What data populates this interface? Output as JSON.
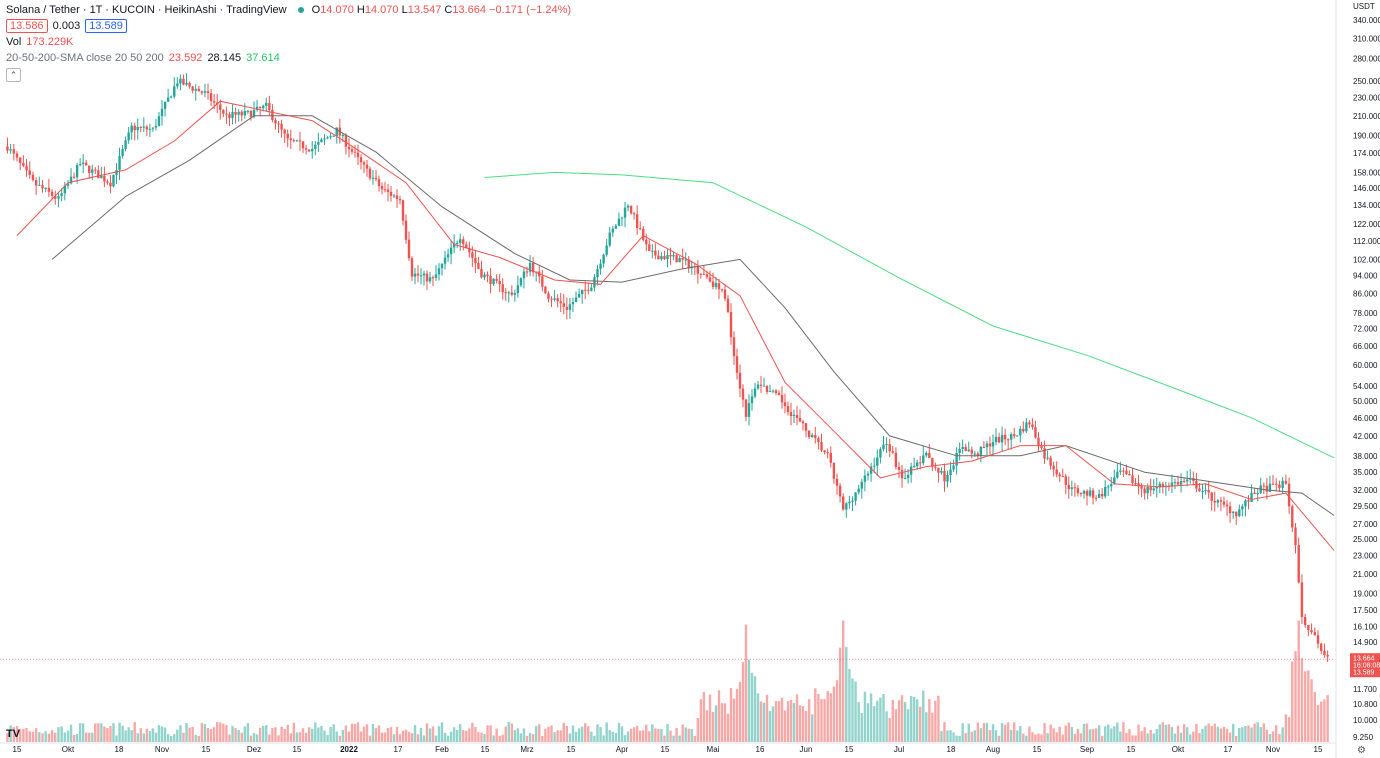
{
  "legend": {
    "title": "Solana / Tether · 1T · KUCOIN · HeikinAshi · TradingView",
    "o_label": "O",
    "o": "14.070",
    "h_label": "H",
    "h": "14.070",
    "l_label": "L",
    "l": "13.547",
    "c_label": "C",
    "c": "13.664",
    "change": "−0.171 (−1.24%)",
    "bid": "13.586",
    "spread": "0.003",
    "ask": "13.589",
    "vol_label": "Vol",
    "vol": "173.229K",
    "sma_label": "20-50-200-SMA close 20 50 200",
    "sma20": "23.592",
    "sma50": "28.145",
    "sma200": "37.614",
    "collapse_icon": "chevron-up-icon"
  },
  "axis": {
    "currency": "USDT",
    "price_labels": [
      "340.000",
      "310.000",
      "280.000",
      "250.000",
      "230.000",
      "210.000",
      "190.000",
      "174.000",
      "158.000",
      "146.000",
      "134.000",
      "122.000",
      "112.000",
      "102.000",
      "94.000",
      "86.000",
      "78.000",
      "72.000",
      "66.000",
      "60.000",
      "54.000",
      "50.000",
      "46.000",
      "42.000",
      "38.000",
      "35.000",
      "32.000",
      "29.500",
      "27.000",
      "25.000",
      "23.000",
      "21.000",
      "19.000",
      "17.500",
      "16.100",
      "14.900",
      "11.700",
      "10.800",
      "10.000",
      "9.250"
    ],
    "price_tags": {
      "last": "13.664",
      "countdown": "16:08:08",
      "ask": "13.589"
    },
    "time_labels": [
      {
        "t": "15",
        "x": 17,
        "bold": false
      },
      {
        "t": "Okt",
        "x": 68,
        "bold": false
      },
      {
        "t": "18",
        "x": 119,
        "bold": false
      },
      {
        "t": "Nov",
        "x": 162,
        "bold": false
      },
      {
        "t": "15",
        "x": 206,
        "bold": false
      },
      {
        "t": "Dez",
        "x": 254,
        "bold": false
      },
      {
        "t": "15",
        "x": 297,
        "bold": false
      },
      {
        "t": "2022",
        "x": 349,
        "bold": true
      },
      {
        "t": "17",
        "x": 398,
        "bold": false
      },
      {
        "t": "Feb",
        "x": 442,
        "bold": false
      },
      {
        "t": "15",
        "x": 485,
        "bold": false
      },
      {
        "t": "Mrz",
        "x": 527,
        "bold": false
      },
      {
        "t": "15",
        "x": 571,
        "bold": false
      },
      {
        "t": "Apr",
        "x": 622,
        "bold": false
      },
      {
        "t": "15",
        "x": 665,
        "bold": false
      },
      {
        "t": "Mai",
        "x": 713,
        "bold": false
      },
      {
        "t": "16",
        "x": 760,
        "bold": false
      },
      {
        "t": "Jun",
        "x": 806,
        "bold": false
      },
      {
        "t": "15",
        "x": 849,
        "bold": false
      },
      {
        "t": "Jul",
        "x": 899,
        "bold": false
      },
      {
        "t": "18",
        "x": 951,
        "bold": false
      },
      {
        "t": "Aug",
        "x": 993,
        "bold": false
      },
      {
        "t": "15",
        "x": 1037,
        "bold": false
      },
      {
        "t": "Sep",
        "x": 1087,
        "bold": false
      },
      {
        "t": "15",
        "x": 1131,
        "bold": false
      },
      {
        "t": "Okt",
        "x": 1178,
        "bold": false
      },
      {
        "t": "17",
        "x": 1228,
        "bold": false
      },
      {
        "t": "Nov",
        "x": 1273,
        "bold": false
      },
      {
        "t": "15",
        "x": 1318,
        "bold": false
      }
    ],
    "settings_icon": "gear-icon",
    "logo": "TV"
  },
  "colors": {
    "up": "#26a69a",
    "down": "#ef5350",
    "vol_up": "#92d3cc",
    "vol_down": "#f7a9a7",
    "sma20": "#ef5350",
    "sma50": "#6b6b6b",
    "sma200": "#4ade80"
  },
  "chart_data": {
    "type": "line",
    "style": "heikin-ashi candlestick",
    "symbol": "Solana / Tether",
    "x_range": [
      "2021-09-15",
      "2022-11-20"
    ],
    "y_range": [
      9.25,
      340
    ],
    "log_scale": true,
    "price_path": [
      {
        "d": "2021-09-12",
        "p": 180
      },
      {
        "d": "2021-09-20",
        "p": 150
      },
      {
        "d": "2021-09-28",
        "p": 138
      },
      {
        "d": "2021-10-05",
        "p": 165
      },
      {
        "d": "2021-10-15",
        "p": 150
      },
      {
        "d": "2021-10-22",
        "p": 198
      },
      {
        "d": "2021-10-29",
        "p": 196
      },
      {
        "d": "2021-11-06",
        "p": 250
      },
      {
        "d": "2021-11-15",
        "p": 235
      },
      {
        "d": "2021-11-22",
        "p": 210
      },
      {
        "d": "2021-11-29",
        "p": 212
      },
      {
        "d": "2021-12-05",
        "p": 220
      },
      {
        "d": "2021-12-12",
        "p": 185
      },
      {
        "d": "2021-12-20",
        "p": 178
      },
      {
        "d": "2021-12-28",
        "p": 195
      },
      {
        "d": "2022-01-05",
        "p": 165
      },
      {
        "d": "2022-01-12",
        "p": 145
      },
      {
        "d": "2022-01-18",
        "p": 138
      },
      {
        "d": "2022-01-22",
        "p": 95
      },
      {
        "d": "2022-01-29",
        "p": 92
      },
      {
        "d": "2022-02-07",
        "p": 115
      },
      {
        "d": "2022-02-14",
        "p": 95
      },
      {
        "d": "2022-02-24",
        "p": 85
      },
      {
        "d": "2022-03-02",
        "p": 100
      },
      {
        "d": "2022-03-08",
        "p": 85
      },
      {
        "d": "2022-03-14",
        "p": 80
      },
      {
        "d": "2022-03-22",
        "p": 90
      },
      {
        "d": "2022-03-28",
        "p": 115
      },
      {
        "d": "2022-04-03",
        "p": 135
      },
      {
        "d": "2022-04-10",
        "p": 105
      },
      {
        "d": "2022-04-20",
        "p": 102
      },
      {
        "d": "2022-04-28",
        "p": 95
      },
      {
        "d": "2022-05-05",
        "p": 85
      },
      {
        "d": "2022-05-09",
        "p": 58
      },
      {
        "d": "2022-05-12",
        "p": 47
      },
      {
        "d": "2022-05-16",
        "p": 55
      },
      {
        "d": "2022-05-24",
        "p": 50
      },
      {
        "d": "2022-05-31",
        "p": 44
      },
      {
        "d": "2022-06-08",
        "p": 38
      },
      {
        "d": "2022-06-13",
        "p": 29
      },
      {
        "d": "2022-06-19",
        "p": 33
      },
      {
        "d": "2022-06-27",
        "p": 41
      },
      {
        "d": "2022-07-02",
        "p": 34
      },
      {
        "d": "2022-07-10",
        "p": 38
      },
      {
        "d": "2022-07-16",
        "p": 34
      },
      {
        "d": "2022-07-22",
        "p": 40
      },
      {
        "d": "2022-07-26",
        "p": 38
      },
      {
        "d": "2022-08-01",
        "p": 41
      },
      {
        "d": "2022-08-08",
        "p": 42
      },
      {
        "d": "2022-08-13",
        "p": 45
      },
      {
        "d": "2022-08-18",
        "p": 38
      },
      {
        "d": "2022-08-27",
        "p": 32
      },
      {
        "d": "2022-09-05",
        "p": 31
      },
      {
        "d": "2022-09-12",
        "p": 35
      },
      {
        "d": "2022-09-20",
        "p": 32
      },
      {
        "d": "2022-09-28",
        "p": 33
      },
      {
        "d": "2022-10-05",
        "p": 33.5
      },
      {
        "d": "2022-10-14",
        "p": 30
      },
      {
        "d": "2022-10-20",
        "p": 28.5
      },
      {
        "d": "2022-10-27",
        "p": 32
      },
      {
        "d": "2022-11-05",
        "p": 33
      },
      {
        "d": "2022-11-08",
        "p": 24
      },
      {
        "d": "2022-11-10",
        "p": 17
      },
      {
        "d": "2022-11-13",
        "p": 15.5
      },
      {
        "d": "2022-11-17",
        "p": 14.1
      },
      {
        "d": "2022-11-20",
        "p": 13.664
      }
    ],
    "sma20": [
      {
        "d": "2021-09-15",
        "p": 115
      },
      {
        "d": "2021-10-01",
        "p": 150
      },
      {
        "d": "2021-10-20",
        "p": 160
      },
      {
        "d": "2021-11-05",
        "p": 185
      },
      {
        "d": "2021-11-20",
        "p": 226
      },
      {
        "d": "2021-12-05",
        "p": 215
      },
      {
        "d": "2021-12-20",
        "p": 205
      },
      {
        "d": "2022-01-05",
        "p": 175
      },
      {
        "d": "2022-01-20",
        "p": 150
      },
      {
        "d": "2022-02-05",
        "p": 110
      },
      {
        "d": "2022-02-20",
        "p": 103
      },
      {
        "d": "2022-03-10",
        "p": 92
      },
      {
        "d": "2022-03-25",
        "p": 90
      },
      {
        "d": "2022-04-08",
        "p": 115
      },
      {
        "d": "2022-04-25",
        "p": 100
      },
      {
        "d": "2022-05-10",
        "p": 85
      },
      {
        "d": "2022-05-25",
        "p": 55
      },
      {
        "d": "2022-06-10",
        "p": 43
      },
      {
        "d": "2022-06-25",
        "p": 34
      },
      {
        "d": "2022-07-10",
        "p": 36
      },
      {
        "d": "2022-07-25",
        "p": 37
      },
      {
        "d": "2022-08-10",
        "p": 40
      },
      {
        "d": "2022-08-25",
        "p": 40
      },
      {
        "d": "2022-09-10",
        "p": 33
      },
      {
        "d": "2022-09-25",
        "p": 32.5
      },
      {
        "d": "2022-10-10",
        "p": 33
      },
      {
        "d": "2022-10-25",
        "p": 30.5
      },
      {
        "d": "2022-11-05",
        "p": 31.5
      },
      {
        "d": "2022-11-20",
        "p": 23.592
      }
    ],
    "sma50": [
      {
        "d": "2021-09-26",
        "p": 102
      },
      {
        "d": "2021-10-20",
        "p": 140
      },
      {
        "d": "2021-11-10",
        "p": 168
      },
      {
        "d": "2021-12-01",
        "p": 210
      },
      {
        "d": "2021-12-20",
        "p": 210
      },
      {
        "d": "2022-01-10",
        "p": 175
      },
      {
        "d": "2022-02-01",
        "p": 133
      },
      {
        "d": "2022-02-25",
        "p": 105
      },
      {
        "d": "2022-03-15",
        "p": 92
      },
      {
        "d": "2022-04-01",
        "p": 91
      },
      {
        "d": "2022-04-20",
        "p": 97
      },
      {
        "d": "2022-05-10",
        "p": 102
      },
      {
        "d": "2022-05-25",
        "p": 80
      },
      {
        "d": "2022-06-10",
        "p": 58
      },
      {
        "d": "2022-06-28",
        "p": 42
      },
      {
        "d": "2022-07-20",
        "p": 38
      },
      {
        "d": "2022-08-10",
        "p": 38
      },
      {
        "d": "2022-08-25",
        "p": 40
      },
      {
        "d": "2022-09-20",
        "p": 35
      },
      {
        "d": "2022-10-10",
        "p": 33.5
      },
      {
        "d": "2022-10-30",
        "p": 32
      },
      {
        "d": "2022-11-10",
        "p": 31.5
      },
      {
        "d": "2022-11-20",
        "p": 28.145
      }
    ],
    "sma200": [
      {
        "d": "2022-02-15",
        "p": 154
      },
      {
        "d": "2022-03-10",
        "p": 158
      },
      {
        "d": "2022-04-01",
        "p": 156
      },
      {
        "d": "2022-05-01",
        "p": 150
      },
      {
        "d": "2022-06-01",
        "p": 120
      },
      {
        "d": "2022-07-01",
        "p": 93
      },
      {
        "d": "2022-08-01",
        "p": 73
      },
      {
        "d": "2022-09-01",
        "p": 63
      },
      {
        "d": "2022-10-01",
        "p": 53
      },
      {
        "d": "2022-10-25",
        "p": 46
      },
      {
        "d": "2022-11-20",
        "p": 37.614
      }
    ],
    "volume_peaks": [
      {
        "d": "2022-05-12",
        "level": "high"
      },
      {
        "d": "2022-06-13",
        "level": "highest"
      },
      {
        "d": "2022-11-09",
        "level": "high"
      }
    ]
  }
}
